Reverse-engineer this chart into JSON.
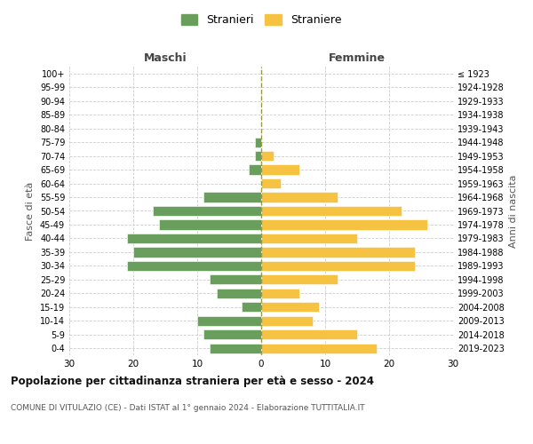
{
  "age_groups_bottom_to_top": [
    "0-4",
    "5-9",
    "10-14",
    "15-19",
    "20-24",
    "25-29",
    "30-34",
    "35-39",
    "40-44",
    "45-49",
    "50-54",
    "55-59",
    "60-64",
    "65-69",
    "70-74",
    "75-79",
    "80-84",
    "85-89",
    "90-94",
    "95-99",
    "100+"
  ],
  "birth_years_bottom_to_top": [
    "2019-2023",
    "2014-2018",
    "2009-2013",
    "2004-2008",
    "1999-2003",
    "1994-1998",
    "1989-1993",
    "1984-1988",
    "1979-1983",
    "1974-1978",
    "1969-1973",
    "1964-1968",
    "1959-1963",
    "1954-1958",
    "1949-1953",
    "1944-1948",
    "1939-1943",
    "1934-1938",
    "1929-1933",
    "1924-1928",
    "≤ 1923"
  ],
  "males_bottom_to_top": [
    8,
    9,
    10,
    3,
    7,
    8,
    21,
    20,
    21,
    16,
    17,
    9,
    0,
    2,
    1,
    1,
    0,
    0,
    0,
    0,
    0
  ],
  "females_bottom_to_top": [
    18,
    15,
    8,
    9,
    6,
    12,
    24,
    24,
    15,
    26,
    22,
    12,
    3,
    6,
    2,
    0,
    0,
    0,
    0,
    0,
    0
  ],
  "male_color": "#6a9e5c",
  "female_color": "#f5c242",
  "title": "Popolazione per cittadinanza straniera per età e sesso - 2024",
  "subtitle": "COMUNE DI VITULAZIO (CE) - Dati ISTAT al 1° gennaio 2024 - Elaborazione TUTTITALIA.IT",
  "header_left": "Maschi",
  "header_right": "Femmine",
  "ylabel_left": "Fasce di età",
  "ylabel_right": "Anni di nascita",
  "legend_male": "Stranieri",
  "legend_female": "Straniere",
  "xlim": 30,
  "background_color": "#ffffff",
  "grid_color": "#cccccc"
}
